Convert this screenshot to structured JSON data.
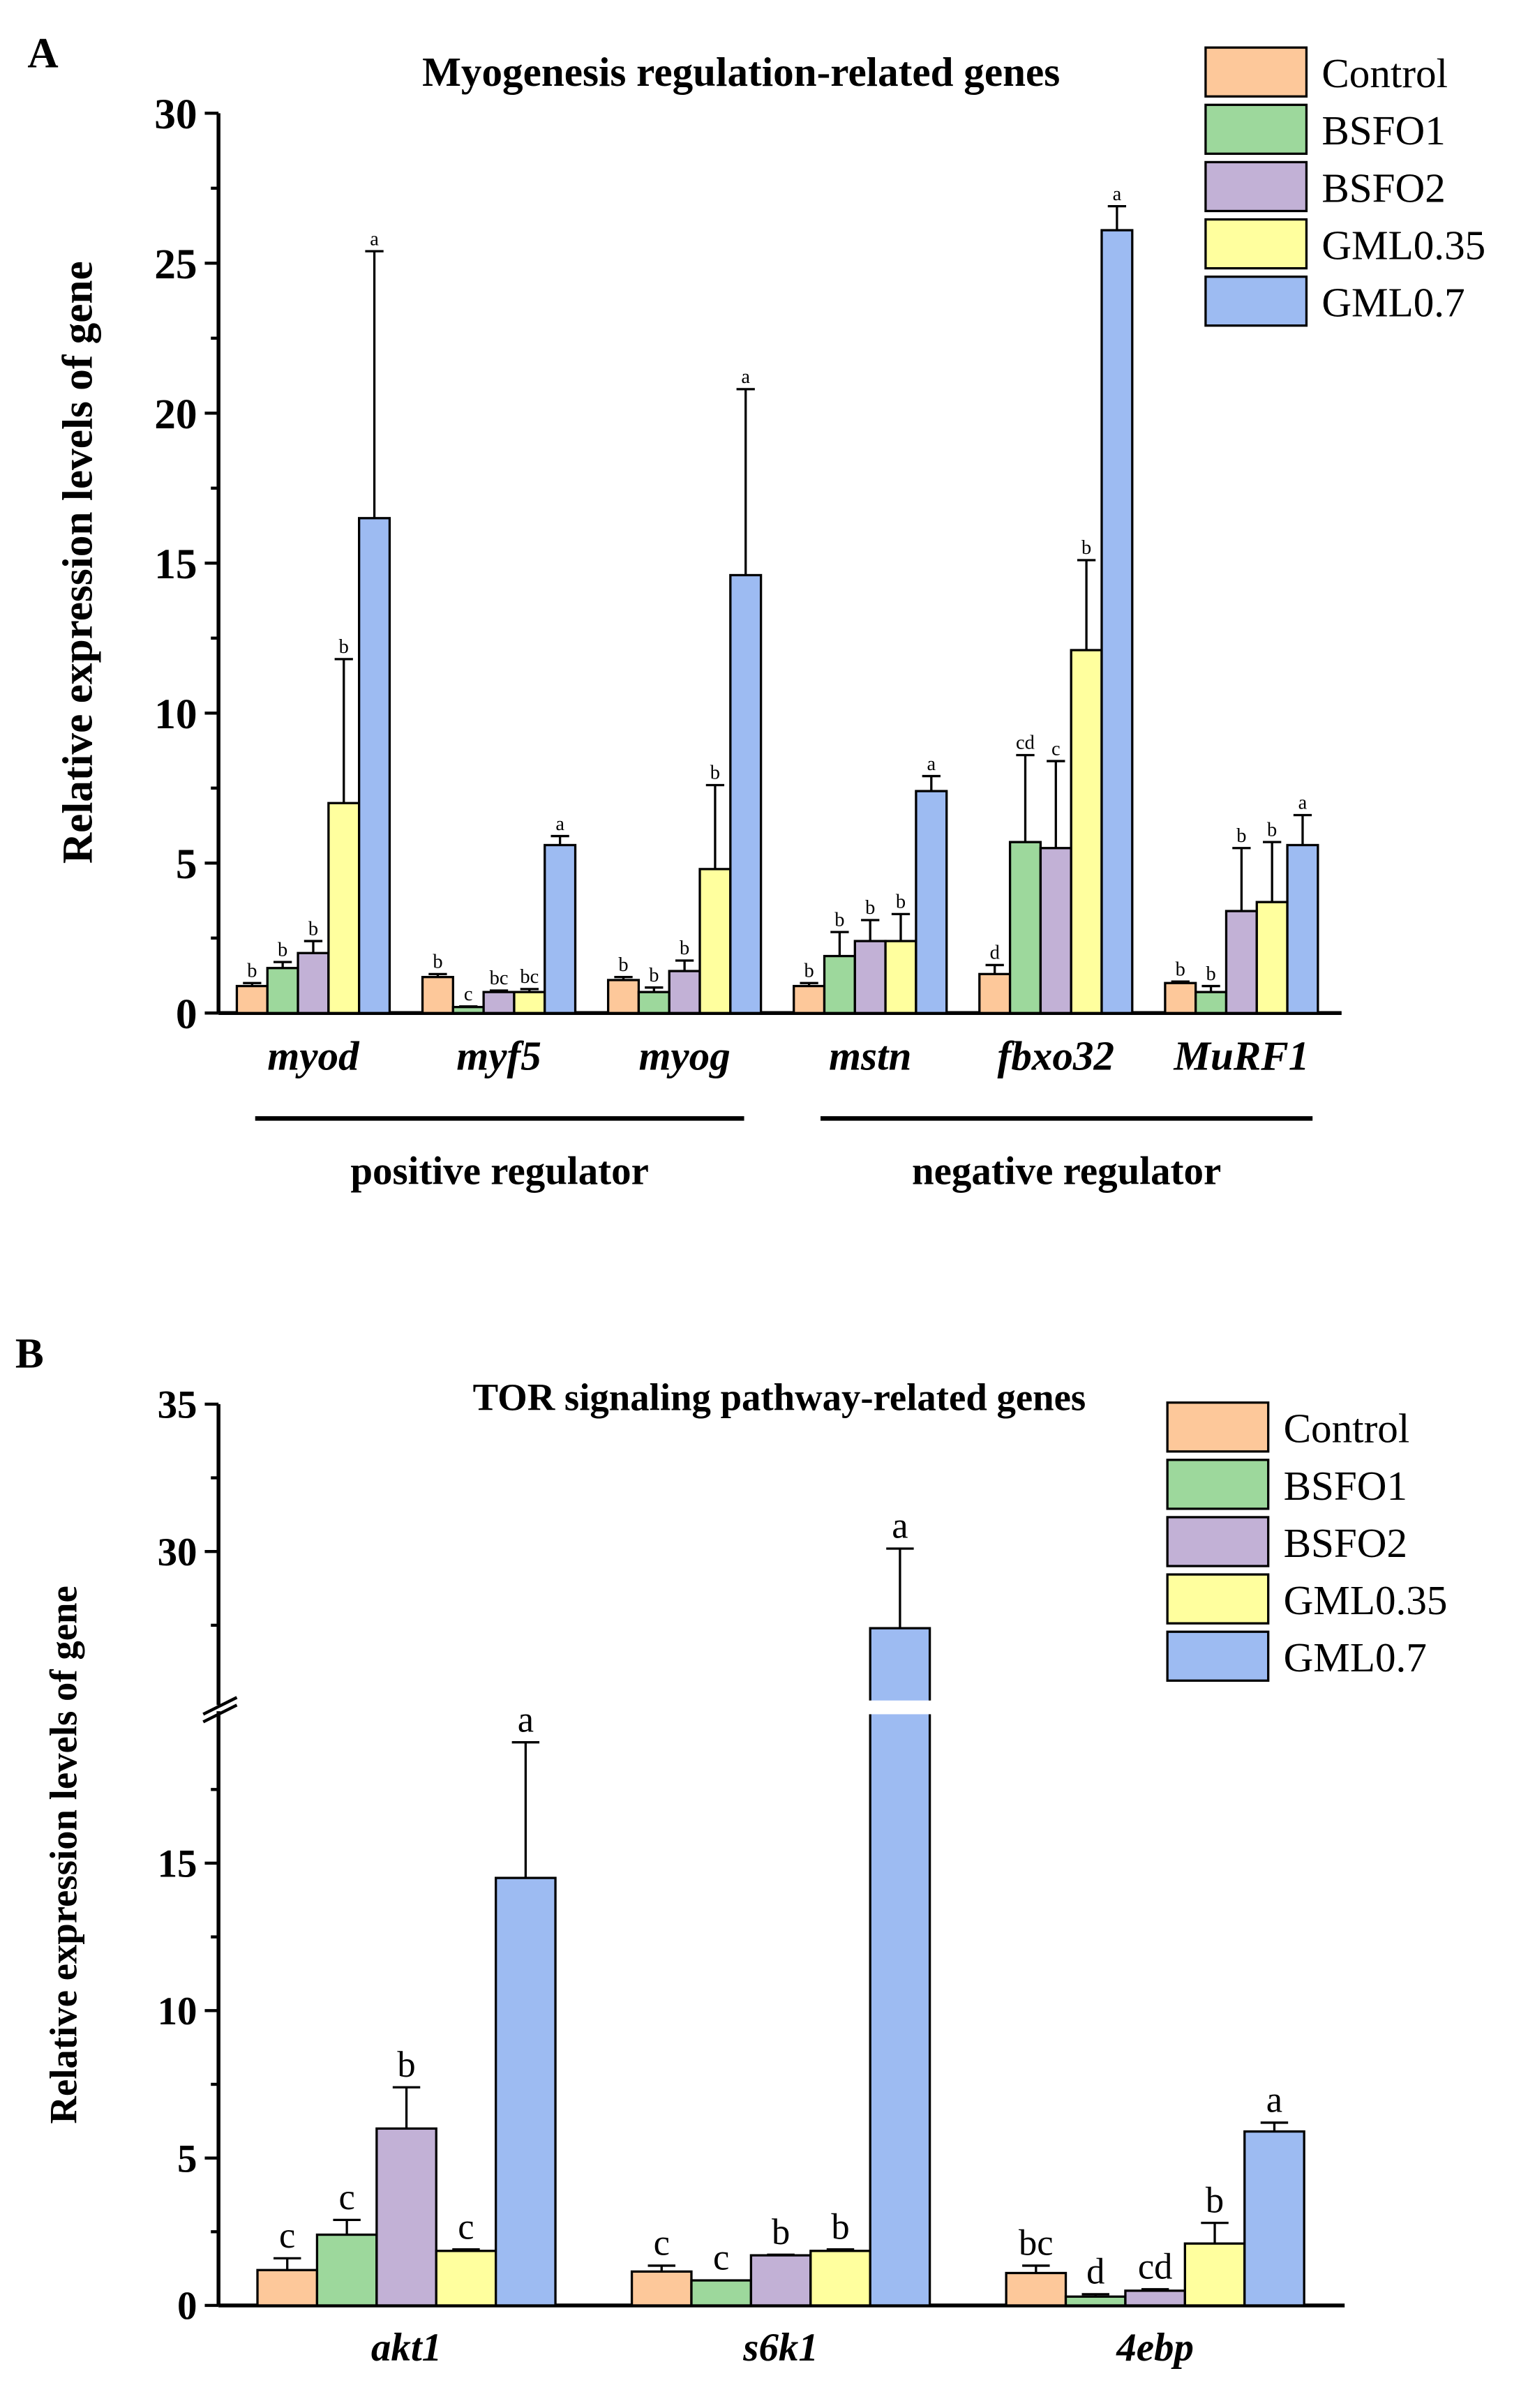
{
  "colors": {
    "Control": "#FDC89A",
    "BSFO1": "#9DD89C",
    "BSFO2": "#C2B1D6",
    "GML0.35": "#FFFF9E",
    "GML0.7": "#9DBBF2"
  },
  "chart_data": [
    {
      "panel": "A",
      "type": "bar",
      "title": "Myogenesis regulation-related genes",
      "ylabel": "Relative expression levels of gene",
      "xlabel": "",
      "ylim": [
        0,
        30
      ],
      "yticks": [
        "0",
        "5",
        "10",
        "15",
        "20",
        "25",
        "30"
      ],
      "categories": [
        "myod",
        "myf5",
        "myog",
        "mstn",
        "fbxo32",
        "MuRF1"
      ],
      "groups": [
        {
          "label": "positive regulator",
          "categories": [
            "myod",
            "myf5",
            "myog"
          ]
        },
        {
          "label": "negative regulator",
          "categories": [
            "mstn",
            "fbxo32",
            "MuRF1"
          ]
        }
      ],
      "legend": [
        "Control",
        "BSFO1",
        "BSFO2",
        "GML0.35",
        "GML0.7"
      ],
      "legend_position": "top-right",
      "series": [
        {
          "name": "Control",
          "values": [
            0.9,
            1.2,
            1.1,
            0.9,
            1.3,
            1.0
          ],
          "error_top": [
            1.0,
            1.3,
            1.2,
            1.0,
            1.6,
            1.05
          ],
          "letters": [
            "b",
            "b",
            "b",
            "b",
            "d",
            "b"
          ]
        },
        {
          "name": "BSFO1",
          "values": [
            1.5,
            0.2,
            0.7,
            1.9,
            5.7,
            0.7
          ],
          "error_top": [
            1.7,
            0.22,
            0.85,
            2.7,
            8.6,
            0.9
          ],
          "letters": [
            "b",
            "c",
            "b",
            "b",
            "cd",
            "b"
          ]
        },
        {
          "name": "BSFO2",
          "values": [
            2.0,
            0.7,
            1.4,
            2.4,
            5.5,
            3.4
          ],
          "error_top": [
            2.4,
            0.75,
            1.75,
            3.1,
            8.4,
            5.5
          ],
          "letters": [
            "b",
            "bc",
            "b",
            "b",
            "c",
            "b"
          ]
        },
        {
          "name": "GML0.35",
          "values": [
            7.0,
            0.7,
            4.8,
            2.4,
            12.1,
            3.7
          ],
          "error_top": [
            11.8,
            0.8,
            7.6,
            3.3,
            15.1,
            5.7
          ],
          "letters": [
            "b",
            "bc",
            "b",
            "b",
            "b",
            "b"
          ]
        },
        {
          "name": "GML0.7",
          "values": [
            16.5,
            5.6,
            14.6,
            7.4,
            26.1,
            5.6
          ],
          "error_top": [
            25.4,
            5.9,
            20.8,
            7.9,
            26.9,
            6.6
          ],
          "letters": [
            "a",
            "a",
            "a",
            "a",
            "a",
            "a"
          ]
        }
      ]
    },
    {
      "panel": "B",
      "type": "bar",
      "title": "TOR signaling pathway-related genes",
      "ylabel": "Relative expression levels of gene",
      "xlabel": "",
      "ylim": [
        0,
        35
      ],
      "axis_break": [
        20,
        25
      ],
      "yticks": [
        "0",
        "5",
        "10",
        "15",
        "30",
        "35"
      ],
      "categories": [
        "akt1",
        "s6k1",
        "4ebp"
      ],
      "legend": [
        "Control",
        "BSFO1",
        "BSFO2",
        "GML0.35",
        "GML0.7"
      ],
      "legend_position": "top-right",
      "series": [
        {
          "name": "Control",
          "values": [
            1.2,
            1.15,
            1.1
          ],
          "error_top": [
            1.6,
            1.35,
            1.35
          ],
          "letters": [
            "c",
            "c",
            "bc"
          ]
        },
        {
          "name": "BSFO1",
          "values": [
            2.4,
            0.85,
            0.3
          ],
          "error_top": [
            2.9,
            0.85,
            0.38
          ],
          "letters": [
            "c",
            "c",
            "d"
          ]
        },
        {
          "name": "BSFO2",
          "values": [
            6.0,
            1.7,
            0.5
          ],
          "error_top": [
            7.4,
            1.72,
            0.55
          ],
          "letters": [
            "b",
            "b",
            "cd"
          ]
        },
        {
          "name": "GML0.35",
          "values": [
            1.85,
            1.85,
            2.1
          ],
          "error_top": [
            1.9,
            1.9,
            2.8
          ],
          "letters": [
            "c",
            "b",
            "b"
          ]
        },
        {
          "name": "GML0.7",
          "values": [
            14.5,
            27.4,
            5.9
          ],
          "error_top": [
            19.1,
            30.1,
            6.2
          ],
          "letters": [
            "a",
            "a",
            "a"
          ]
        }
      ]
    }
  ],
  "panel_labels": [
    "A",
    "B"
  ]
}
